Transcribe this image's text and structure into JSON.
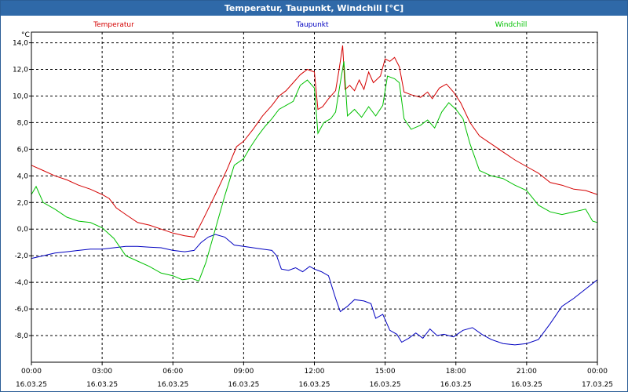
{
  "window": {
    "title": "Temperatur, Taupunkt, Windchill [°C]"
  },
  "chart_data": {
    "type": "line",
    "title": "Temperatur, Taupunkt, Windchill [°C]",
    "ylabel": "°C",
    "ylim": [
      -10,
      14.8
    ],
    "y_ticks": [
      14.0,
      12.0,
      10.0,
      8.0,
      6.0,
      4.0,
      2.0,
      0.0,
      -2.0,
      -4.0,
      -6.0,
      -8.0
    ],
    "y_tick_labels": [
      "14,0",
      "12,0",
      "10,0",
      "8,0",
      "6,0",
      "4,0",
      "2,0",
      "0,0",
      "-2,0",
      "-4,0",
      "-6,0",
      "-8,0"
    ],
    "x_range_hours": [
      0,
      24
    ],
    "x_ticks": [
      {
        "hour": 0,
        "time": "00:00",
        "date": "16.03.25"
      },
      {
        "hour": 3,
        "time": "03:00",
        "date": "16.03.25"
      },
      {
        "hour": 6,
        "time": "06:00",
        "date": "16.03.25"
      },
      {
        "hour": 9,
        "time": "09:00",
        "date": "16.03.25"
      },
      {
        "hour": 12,
        "time": "12:00",
        "date": "16.03.25"
      },
      {
        "hour": 15,
        "time": "15:00",
        "date": "16.03.25"
      },
      {
        "hour": 18,
        "time": "18:00",
        "date": "16.03.25"
      },
      {
        "hour": 21,
        "time": "21:00",
        "date": "16.03.25"
      },
      {
        "hour": 24,
        "time": "00:00",
        "date": "17.03.25"
      }
    ],
    "grid": true,
    "legend_placement": "top",
    "series": [
      {
        "name": "Temperatur",
        "color": "#d40000",
        "points": [
          [
            0,
            4.8
          ],
          [
            0.5,
            4.4
          ],
          [
            1,
            4.0
          ],
          [
            1.5,
            3.7
          ],
          [
            2,
            3.3
          ],
          [
            2.5,
            3.0
          ],
          [
            3,
            2.6
          ],
          [
            3.3,
            2.3
          ],
          [
            3.6,
            1.6
          ],
          [
            4,
            1.1
          ],
          [
            4.5,
            0.5
          ],
          [
            5,
            0.3
          ],
          [
            5.5,
            0
          ],
          [
            6,
            -0.3
          ],
          [
            6.5,
            -0.5
          ],
          [
            6.9,
            -0.6
          ],
          [
            7.3,
            0.8
          ],
          [
            7.8,
            2.6
          ],
          [
            8.3,
            4.5
          ],
          [
            8.7,
            6.2
          ],
          [
            9.0,
            6.6
          ],
          [
            9.4,
            7.5
          ],
          [
            9.8,
            8.5
          ],
          [
            10.2,
            9.3
          ],
          [
            10.5,
            10.0
          ],
          [
            10.8,
            10.4
          ],
          [
            11.1,
            11.0
          ],
          [
            11.4,
            11.6
          ],
          [
            11.7,
            12.0
          ],
          [
            12.0,
            11.8
          ],
          [
            12.15,
            9.0
          ],
          [
            12.35,
            9.2
          ],
          [
            12.6,
            9.8
          ],
          [
            12.9,
            10.4
          ],
          [
            13.05,
            12.0
          ],
          [
            13.2,
            13.8
          ],
          [
            13.3,
            10.5
          ],
          [
            13.5,
            10.8
          ],
          [
            13.7,
            10.4
          ],
          [
            13.9,
            11.2
          ],
          [
            14.1,
            10.5
          ],
          [
            14.3,
            11.8
          ],
          [
            14.5,
            11.0
          ],
          [
            14.8,
            11.5
          ],
          [
            15.0,
            12.8
          ],
          [
            15.2,
            12.6
          ],
          [
            15.4,
            12.9
          ],
          [
            15.6,
            12.2
          ],
          [
            15.8,
            10.3
          ],
          [
            16.1,
            10.1
          ],
          [
            16.5,
            9.9
          ],
          [
            16.8,
            10.3
          ],
          [
            17.0,
            9.8
          ],
          [
            17.3,
            10.6
          ],
          [
            17.6,
            10.9
          ],
          [
            17.9,
            10.3
          ],
          [
            18.2,
            9.5
          ],
          [
            18.6,
            8.0
          ],
          [
            19.0,
            7.0
          ],
          [
            19.5,
            6.4
          ],
          [
            20,
            5.8
          ],
          [
            20.5,
            5.2
          ],
          [
            21,
            4.7
          ],
          [
            21.5,
            4.2
          ],
          [
            22,
            3.5
          ],
          [
            22.5,
            3.3
          ],
          [
            23,
            3.0
          ],
          [
            23.5,
            2.9
          ],
          [
            24,
            2.6
          ]
        ]
      },
      {
        "name": "Taupunkt",
        "color": "#0000c0",
        "points": [
          [
            0,
            -2.2
          ],
          [
            0.5,
            -2.0
          ],
          [
            1,
            -1.8
          ],
          [
            1.5,
            -1.7
          ],
          [
            2,
            -1.6
          ],
          [
            2.5,
            -1.5
          ],
          [
            3,
            -1.5
          ],
          [
            3.5,
            -1.4
          ],
          [
            4,
            -1.3
          ],
          [
            4.5,
            -1.3
          ],
          [
            5,
            -1.35
          ],
          [
            5.5,
            -1.4
          ],
          [
            6,
            -1.6
          ],
          [
            6.5,
            -1.7
          ],
          [
            6.9,
            -1.6
          ],
          [
            7.2,
            -1.0
          ],
          [
            7.5,
            -0.6
          ],
          [
            7.8,
            -0.4
          ],
          [
            8.2,
            -0.6
          ],
          [
            8.6,
            -1.2
          ],
          [
            9,
            -1.3
          ],
          [
            9.4,
            -1.4
          ],
          [
            9.8,
            -1.5
          ],
          [
            10.2,
            -1.6
          ],
          [
            10.4,
            -2.0
          ],
          [
            10.6,
            -3.0
          ],
          [
            10.9,
            -3.1
          ],
          [
            11.2,
            -2.9
          ],
          [
            11.5,
            -3.2
          ],
          [
            11.8,
            -2.8
          ],
          [
            12,
            -3.0
          ],
          [
            12.3,
            -3.2
          ],
          [
            12.6,
            -3.5
          ],
          [
            12.9,
            -5.2
          ],
          [
            13.1,
            -6.2
          ],
          [
            13.4,
            -5.8
          ],
          [
            13.7,
            -5.3
          ],
          [
            14.1,
            -5.4
          ],
          [
            14.4,
            -5.6
          ],
          [
            14.6,
            -6.7
          ],
          [
            14.9,
            -6.4
          ],
          [
            15.2,
            -7.6
          ],
          [
            15.5,
            -7.9
          ],
          [
            15.7,
            -8.5
          ],
          [
            16,
            -8.2
          ],
          [
            16.3,
            -7.8
          ],
          [
            16.6,
            -8.2
          ],
          [
            16.9,
            -7.5
          ],
          [
            17.2,
            -8.0
          ],
          [
            17.5,
            -7.9
          ],
          [
            17.9,
            -8.1
          ],
          [
            18.3,
            -7.6
          ],
          [
            18.7,
            -7.4
          ],
          [
            19.1,
            -7.9
          ],
          [
            19.5,
            -8.3
          ],
          [
            20,
            -8.6
          ],
          [
            20.5,
            -8.7
          ],
          [
            21,
            -8.6
          ],
          [
            21.5,
            -8.3
          ],
          [
            22,
            -7.1
          ],
          [
            22.5,
            -5.8
          ],
          [
            23,
            -5.2
          ],
          [
            23.5,
            -4.5
          ],
          [
            24,
            -3.8
          ]
        ]
      },
      {
        "name": "Windchill",
        "color": "#00c000",
        "points": [
          [
            0,
            2.6
          ],
          [
            0.2,
            3.2
          ],
          [
            0.5,
            2.0
          ],
          [
            1,
            1.5
          ],
          [
            1.5,
            0.9
          ],
          [
            2,
            0.6
          ],
          [
            2.5,
            0.5
          ],
          [
            3,
            0.1
          ],
          [
            3.5,
            -0.7
          ],
          [
            4,
            -2.0
          ],
          [
            4.5,
            -2.4
          ],
          [
            5,
            -2.8
          ],
          [
            5.5,
            -3.3
          ],
          [
            6,
            -3.5
          ],
          [
            6.4,
            -3.8
          ],
          [
            6.8,
            -3.7
          ],
          [
            7.1,
            -3.9
          ],
          [
            7.4,
            -2.5
          ],
          [
            7.8,
            0.0
          ],
          [
            8.2,
            2.5
          ],
          [
            8.6,
            4.8
          ],
          [
            9,
            5.3
          ],
          [
            9.3,
            6.2
          ],
          [
            9.6,
            7.0
          ],
          [
            9.9,
            7.7
          ],
          [
            10.2,
            8.3
          ],
          [
            10.5,
            9.0
          ],
          [
            10.8,
            9.3
          ],
          [
            11.1,
            9.6
          ],
          [
            11.4,
            10.8
          ],
          [
            11.7,
            11.2
          ],
          [
            12,
            10.6
          ],
          [
            12.15,
            7.2
          ],
          [
            12.4,
            8.0
          ],
          [
            12.7,
            8.3
          ],
          [
            12.9,
            8.8
          ],
          [
            13.1,
            11.0
          ],
          [
            13.25,
            12.6
          ],
          [
            13.4,
            8.5
          ],
          [
            13.7,
            9.0
          ],
          [
            14,
            8.4
          ],
          [
            14.3,
            9.2
          ],
          [
            14.6,
            8.5
          ],
          [
            14.9,
            9.3
          ],
          [
            15.1,
            11.5
          ],
          [
            15.4,
            11.3
          ],
          [
            15.6,
            11.0
          ],
          [
            15.8,
            8.3
          ],
          [
            16.1,
            7.5
          ],
          [
            16.5,
            7.8
          ],
          [
            16.8,
            8.2
          ],
          [
            17.1,
            7.6
          ],
          [
            17.4,
            8.8
          ],
          [
            17.7,
            9.5
          ],
          [
            18,
            9.0
          ],
          [
            18.3,
            8.3
          ],
          [
            18.6,
            6.4
          ],
          [
            19,
            4.4
          ],
          [
            19.5,
            4.0
          ],
          [
            20,
            3.8
          ],
          [
            20.5,
            3.3
          ],
          [
            21,
            2.9
          ],
          [
            21.5,
            1.8
          ],
          [
            22,
            1.3
          ],
          [
            22.5,
            1.1
          ],
          [
            23,
            1.3
          ],
          [
            23.5,
            1.5
          ],
          [
            23.8,
            0.6
          ],
          [
            24,
            0.5
          ]
        ]
      }
    ]
  }
}
